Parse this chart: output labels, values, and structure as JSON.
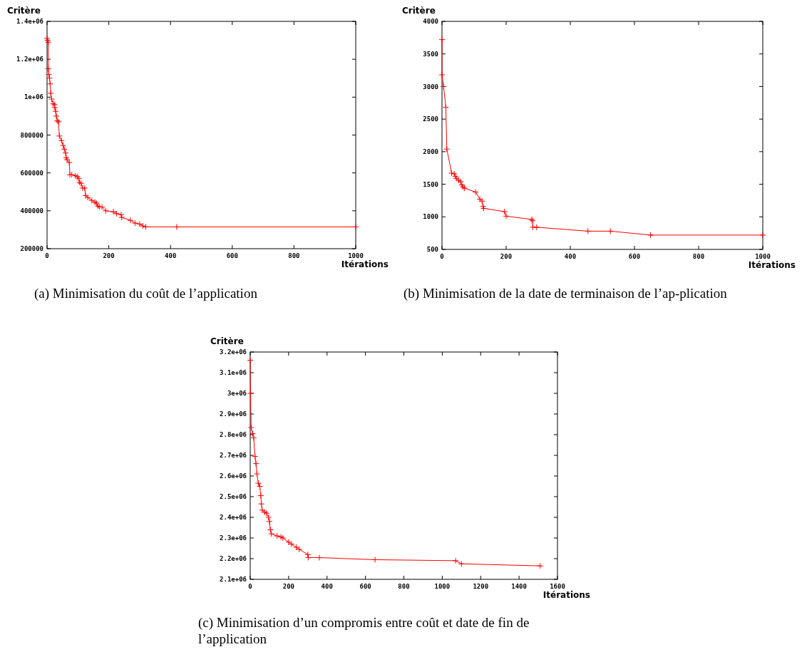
{
  "chart_data": [
    {
      "type": "line",
      "ylabel": "Critère",
      "xlabel": "Itérations",
      "annotations": [
        "(a) Minimisation du coût de l’application"
      ],
      "marker": "cross",
      "line_style": "solid",
      "grid": false,
      "xlim": [
        0,
        1000
      ],
      "xticks": [
        0,
        200,
        400,
        600,
        800,
        1000
      ],
      "ylim": [
        200000,
        1400000
      ],
      "yticks": [
        200000,
        400000,
        600000,
        800000,
        {
          "value": 1000000,
          "label": "1e+06"
        },
        {
          "value": 1200000,
          "label": "1.2e+06"
        },
        {
          "value": 1400000,
          "label": "1.4e+06"
        }
      ],
      "series": [
        {
          "color": "#ff0000",
          "x": [
            0,
            2,
            4,
            4,
            6,
            8,
            10,
            12,
            15,
            20,
            24,
            25,
            28,
            30,
            33,
            37,
            40,
            47,
            52,
            56,
            60,
            62,
            65,
            72,
            74,
            80,
            92,
            98,
            103,
            105,
            110,
            115,
            122,
            125,
            132,
            145,
            155,
            160,
            165,
            170,
            178,
            190,
            215,
            225,
            240,
            242,
            270,
            285,
            300,
            310,
            320,
            420,
            1000
          ],
          "values": [
            1310000,
            1300000,
            1290000,
            1150000,
            1120000,
            1100000,
            1070000,
            1020000,
            990000,
            965000,
            960000,
            945000,
            925000,
            900000,
            875000,
            870000,
            795000,
            770000,
            745000,
            725000,
            705000,
            680000,
            670000,
            655000,
            590000,
            590000,
            585000,
            580000,
            570000,
            550000,
            545000,
            520000,
            520000,
            480000,
            470000,
            455000,
            445000,
            440000,
            425000,
            420000,
            420000,
            400000,
            395000,
            385000,
            380000,
            365000,
            350000,
            335000,
            330000,
            320000,
            315000,
            315000,
            315000
          ]
        }
      ]
    },
    {
      "type": "line",
      "ylabel": "Critère",
      "xlabel": "Itérations",
      "annotations": [
        "(b) Minimisation de la date de terminaison de l’ap-plication"
      ],
      "marker": "cross",
      "line_style": "solid",
      "grid": false,
      "xlim": [
        0,
        1000
      ],
      "xticks": [
        0,
        200,
        400,
        600,
        800,
        1000
      ],
      "ylim": [
        500,
        4000
      ],
      "yticks": [
        500,
        1000,
        1500,
        2000,
        2500,
        3000,
        3500,
        4000
      ],
      "series": [
        {
          "color": "#ff0000",
          "x": [
            0,
            0,
            5,
            12,
            15,
            30,
            38,
            42,
            45,
            52,
            58,
            62,
            65,
            70,
            105,
            118,
            125,
            128,
            130,
            195,
            200,
            280,
            282,
            283,
            295,
            455,
            525,
            650,
            1000
          ],
          "values": [
            3720,
            3180,
            3000,
            2680,
            2040,
            1670,
            1660,
            1620,
            1590,
            1560,
            1540,
            1490,
            1460,
            1440,
            1380,
            1270,
            1240,
            1160,
            1130,
            1080,
            1010,
            960,
            940,
            840,
            840,
            780,
            780,
            720,
            720
          ]
        }
      ]
    },
    {
      "type": "line",
      "ylabel": "Critère",
      "xlabel": "Itérations",
      "annotations": [
        "(c) Minimisation d’un compromis entre coût et date de fin de l’application"
      ],
      "marker": "cross",
      "line_style": "solid",
      "grid": false,
      "xlim": [
        0,
        1600
      ],
      "xticks": [
        0,
        200,
        400,
        600,
        800,
        1000,
        1200,
        1400,
        1600
      ],
      "ylim": [
        2100000,
        3200000
      ],
      "yticks": [
        {
          "value": 2100000,
          "label": "2.1e+06"
        },
        {
          "value": 2200000,
          "label": "2.2e+06"
        },
        {
          "value": 2300000,
          "label": "2.3e+06"
        },
        {
          "value": 2400000,
          "label": "2.4e+06"
        },
        {
          "value": 2500000,
          "label": "2.5e+06"
        },
        {
          "value": 2600000,
          "label": "2.6e+06"
        },
        {
          "value": 2700000,
          "label": "2.7e+06"
        },
        {
          "value": 2800000,
          "label": "2.8e+06"
        },
        {
          "value": 2900000,
          "label": "2.9e+06"
        },
        {
          "value": 3000000,
          "label": "3e+06"
        },
        {
          "value": 3100000,
          "label": "3.1e+06"
        },
        {
          "value": 3200000,
          "label": "3.2e+06"
        }
      ],
      "series": [
        {
          "color": "#ff0000",
          "x": [
            0,
            2,
            5,
            12,
            18,
            25,
            30,
            35,
            42,
            50,
            55,
            58,
            62,
            75,
            85,
            95,
            100,
            105,
            110,
            140,
            160,
            170,
            200,
            215,
            240,
            255,
            300,
            302,
            360,
            650,
            1070,
            1100,
            1510
          ],
          "values": [
            3160000,
            3000000,
            2835000,
            2805000,
            2785000,
            2695000,
            2660000,
            2610000,
            2565000,
            2550000,
            2505000,
            2465000,
            2435000,
            2425000,
            2420000,
            2400000,
            2380000,
            2340000,
            2320000,
            2310000,
            2305000,
            2300000,
            2280000,
            2270000,
            2255000,
            2245000,
            2220000,
            2205000,
            2205000,
            2195000,
            2190000,
            2175000,
            2165000
          ]
        }
      ]
    }
  ]
}
